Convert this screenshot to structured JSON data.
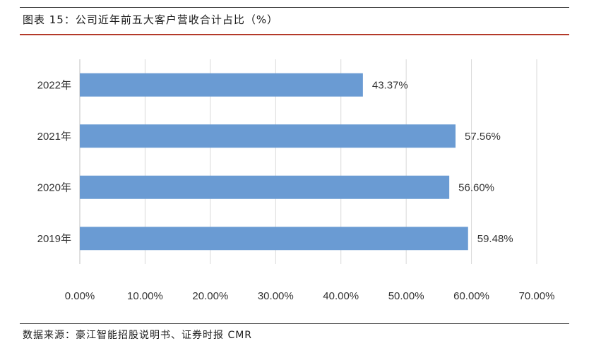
{
  "figure": {
    "title": "图表 15：公司近年前五大客户营收合计占比（%）",
    "source": "数据来源：豪江智能招股说明书、证券时报 CMR"
  },
  "chart_data": {
    "type": "bar",
    "orientation": "horizontal",
    "categories": [
      "2022年",
      "2021年",
      "2020年",
      "2019年"
    ],
    "values": [
      43.37,
      57.56,
      56.6,
      59.48
    ],
    "value_labels": [
      "43.37%",
      "57.56%",
      "56.60%",
      "59.48%"
    ],
    "xlim": [
      0,
      70
    ],
    "xticks": [
      0,
      10,
      20,
      30,
      40,
      50,
      60,
      70
    ],
    "xtick_labels": [
      "0.00%",
      "10.00%",
      "20.00%",
      "30.00%",
      "40.00%",
      "50.00%",
      "60.00%",
      "70.00%"
    ],
    "grid": "vertical",
    "bar_color": "#6a9bd3",
    "grid_color": "#d9d9d9"
  }
}
